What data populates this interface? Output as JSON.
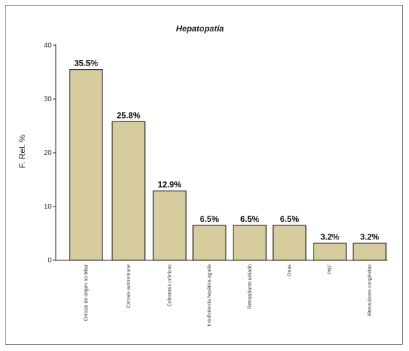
{
  "chart_data": {
    "type": "bar",
    "title": "Hepatopatía",
    "xlabel": "",
    "ylabel": "F. Rel. %",
    "ylim": [
      0,
      40
    ],
    "yticks": [
      0,
      10,
      20,
      30,
      40
    ],
    "categories": [
      "Cirrosis de origen no biliar",
      "Cirrosis autoinmune",
      "Colestasis crónicas",
      "Insuficiencia hepática aguda",
      "Retrasplante aislado",
      "Otras",
      "PNF",
      "Alteraciones congénitas"
    ],
    "values": [
      35.5,
      25.8,
      12.9,
      6.5,
      6.5,
      6.5,
      3.2,
      3.2
    ],
    "data_labels": [
      "35.5%",
      "25.8%",
      "12.9%",
      "6.5%",
      "6.5%",
      "6.5%",
      "3.2%",
      "3.2%"
    ],
    "bar_color": "#d6cc9e",
    "bar_edge_color": "#2b2b2b",
    "grid": false,
    "legend": "none"
  }
}
